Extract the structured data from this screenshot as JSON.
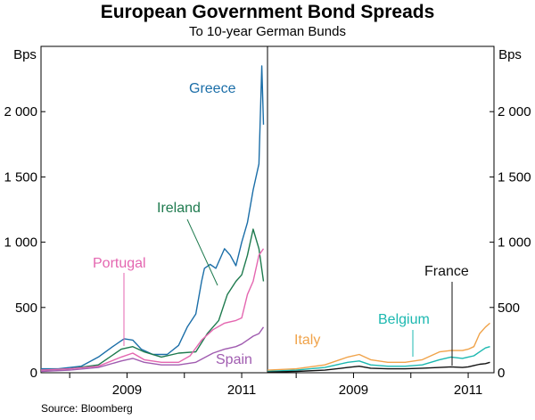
{
  "chart_data": {
    "type": "line",
    "title": "European Government Bond Spreads",
    "subtitle": "To 10-year German Bunds",
    "source": "Source: Bloomberg",
    "ylabel_left": "Bps",
    "ylabel_right": "Bps",
    "ylim": [
      0,
      2500
    ],
    "xlim": [
      2007.5,
      2011.45
    ],
    "y_ticks": [
      0,
      500,
      1000,
      1500,
      2000
    ],
    "y_tick_labels": [
      "0",
      "500",
      "1 000",
      "1 500",
      "2 000"
    ],
    "x_ticks": [
      2009,
      2011
    ],
    "x_tick_labels": [
      "2009",
      "2011"
    ],
    "panels": [
      {
        "name": "left",
        "series": [
          {
            "name": "Greece",
            "label": "Greece",
            "color": "#1b6ea8",
            "x": [
              2007.5,
              2007.8,
              2008.2,
              2008.5,
              2008.75,
              2008.95,
              2009.1,
              2009.25,
              2009.45,
              2009.7,
              2009.9,
              2010.05,
              2010.2,
              2010.3,
              2010.35,
              2010.45,
              2010.55,
              2010.7,
              2010.8,
              2010.9,
              2011.0,
              2011.1,
              2011.2,
              2011.3,
              2011.35,
              2011.38
            ],
            "values": [
              30,
              30,
              50,
              120,
              200,
              260,
              250,
              180,
              140,
              140,
              210,
              350,
              450,
              700,
              800,
              830,
              800,
              950,
              900,
              820,
              1000,
              1150,
              1400,
              1600,
              2350,
              1900
            ]
          },
          {
            "name": "Ireland",
            "label": "Ireland",
            "color": "#1e7a4e",
            "x": [
              2007.5,
              2008.0,
              2008.5,
              2008.9,
              2009.1,
              2009.3,
              2009.6,
              2009.9,
              2010.2,
              2010.4,
              2010.6,
              2010.75,
              2010.9,
              2011.0,
              2011.1,
              2011.2,
              2011.3,
              2011.38
            ],
            "values": [
              20,
              30,
              60,
              180,
              200,
              160,
              120,
              150,
              160,
              300,
              400,
              600,
              700,
              750,
              900,
              1100,
              950,
              700
            ]
          },
          {
            "name": "Portugal",
            "label": "Portugal",
            "color": "#e466b0",
            "x": [
              2007.5,
              2008.0,
              2008.5,
              2008.9,
              2009.1,
              2009.3,
              2009.6,
              2009.9,
              2010.1,
              2010.3,
              2010.5,
              2010.7,
              2010.9,
              2011.0,
              2011.1,
              2011.2,
              2011.3,
              2011.38
            ],
            "values": [
              20,
              30,
              50,
              120,
              150,
              100,
              80,
              80,
              130,
              250,
              330,
              380,
              400,
              420,
              600,
              700,
              900,
              950
            ]
          },
          {
            "name": "Spain",
            "label": "Spain",
            "color": "#a05cb0",
            "x": [
              2007.5,
              2008.0,
              2008.5,
              2008.9,
              2009.1,
              2009.3,
              2009.6,
              2009.9,
              2010.2,
              2010.5,
              2010.7,
              2010.9,
              2011.0,
              2011.1,
              2011.2,
              2011.3,
              2011.38
            ],
            "values": [
              10,
              20,
              40,
              90,
              110,
              80,
              60,
              60,
              80,
              150,
              180,
              200,
              220,
              250,
              280,
              300,
              350
            ]
          }
        ]
      },
      {
        "name": "right",
        "series": [
          {
            "name": "Italy",
            "label": "Italy",
            "color": "#f0a34a",
            "x": [
              2007.5,
              2008.0,
              2008.5,
              2008.9,
              2009.1,
              2009.3,
              2009.6,
              2009.9,
              2010.2,
              2010.5,
              2010.7,
              2010.9,
              2011.0,
              2011.1,
              2011.2,
              2011.3,
              2011.38
            ],
            "values": [
              20,
              30,
              60,
              120,
              140,
              100,
              80,
              80,
              100,
              160,
              170,
              170,
              180,
              200,
              300,
              350,
              380
            ]
          },
          {
            "name": "Belgium",
            "label": "Belgium",
            "color": "#1cb8b0",
            "x": [
              2007.5,
              2008.0,
              2008.5,
              2008.9,
              2009.1,
              2009.3,
              2009.6,
              2009.9,
              2010.2,
              2010.5,
              2010.7,
              2010.9,
              2011.0,
              2011.1,
              2011.2,
              2011.3,
              2011.38
            ],
            "values": [
              10,
              20,
              40,
              80,
              90,
              60,
              50,
              50,
              60,
              100,
              120,
              110,
              120,
              130,
              160,
              190,
              200
            ]
          },
          {
            "name": "France",
            "label": "France",
            "color": "#111111",
            "x": [
              2007.5,
              2008.0,
              2008.5,
              2008.9,
              2009.1,
              2009.3,
              2009.6,
              2009.9,
              2010.2,
              2010.5,
              2010.7,
              2010.9,
              2011.0,
              2011.1,
              2011.2,
              2011.3,
              2011.38
            ],
            "values": [
              5,
              10,
              20,
              40,
              50,
              35,
              30,
              30,
              35,
              40,
              45,
              40,
              45,
              55,
              65,
              70,
              80
            ]
          }
        ]
      }
    ]
  }
}
